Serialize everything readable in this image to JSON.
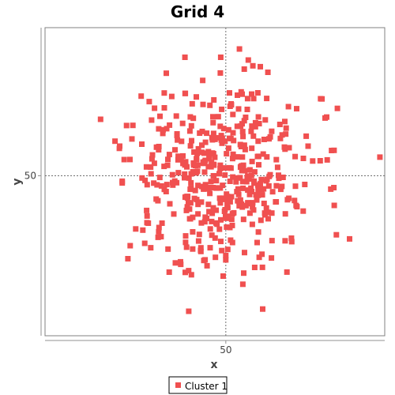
{
  "chart_data": {
    "type": "scatter",
    "title": "Grid 4",
    "xlabel": "x",
    "ylabel": "y",
    "xlim": [
      -13.7,
      106
    ],
    "ylim": [
      -4,
      100
    ],
    "x_ticks": [
      50
    ],
    "y_ticks": [
      50
    ],
    "tick_labels": {
      "x": "50",
      "y": "50"
    },
    "crosshair": {
      "x": 50,
      "y": 50
    },
    "grid": false,
    "legend": {
      "position": "bottom-center",
      "entries": [
        "Cluster 1"
      ]
    },
    "colors": {
      "marker": "#f05050",
      "plot_border": "#808080",
      "crosshair": "#707070"
    },
    "marker": "square",
    "series": [
      {
        "name": "Cluster 1",
        "points_generator": {
          "count": 480,
          "center_x": 50,
          "center_y": 50,
          "std_x": 15,
          "std_y": 15,
          "seed": 4
        },
        "points": [
          [
            56,
            13.4
          ],
          [
            62.9,
            19.1
          ],
          [
            35.7,
            17.4
          ],
          [
            15.5,
            22
          ],
          [
            50,
            21.6
          ],
          [
            50,
            23.1
          ],
          [
            88.2,
            40
          ],
          [
            104.3,
            56.3
          ],
          [
            93.6,
            28.7
          ],
          [
            35.6,
            90
          ],
          [
            48.2,
            90
          ],
          [
            56.5,
            86
          ],
          [
            79,
            60
          ],
          [
            80.6,
            55
          ],
          [
            83.4,
            76
          ],
          [
            61.3,
            78
          ],
          [
            22.3,
            47
          ],
          [
            12.6,
            60
          ]
        ]
      }
    ]
  }
}
